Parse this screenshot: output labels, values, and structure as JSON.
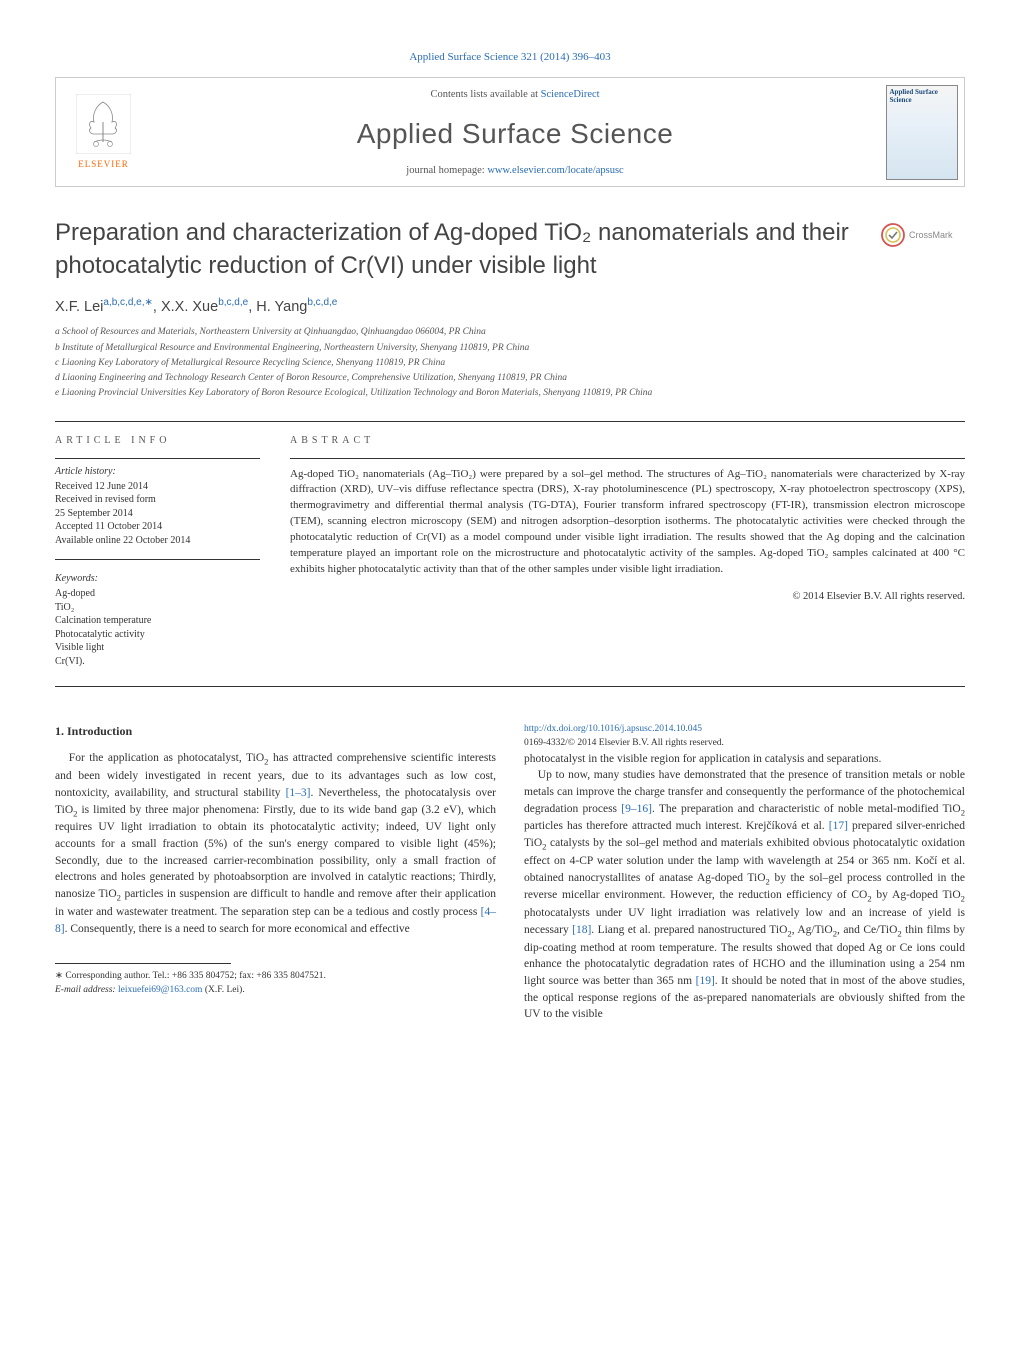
{
  "citation": "Applied Surface Science 321 (2014) 396–403",
  "header": {
    "contents_prefix": "Contents lists available at ",
    "contents_link": "ScienceDirect",
    "journal_name": "Applied Surface Science",
    "homepage_prefix": "journal homepage: ",
    "homepage_url": "www.elsevier.com/locate/apsusc",
    "publisher": "ELSEVIER",
    "cover_title": "Applied Surface Science"
  },
  "crossmark": "CrossMark",
  "title": "Preparation and characterization of Ag-doped TiO₂ nanomaterials and their photocatalytic reduction of Cr(VI) under visible light",
  "authors_html": "X.F. Lei<sup>a,b,c,d,e,∗</sup>, X.X. Xue<sup>b,c,d,e</sup>, H. Yang<sup>b,c,d,e</sup>",
  "affiliations": [
    "a School of Resources and Materials, Northeastern University at Qinhuangdao, Qinhuangdao 066004, PR China",
    "b Institute of Metallurgical Resource and Environmental Engineering, Northeastern University, Shenyang 110819, PR China",
    "c Liaoning Key Laboratory of Metallurgical Resource Recycling Science, Shenyang 110819, PR China",
    "d Liaoning Engineering and Technology Research Center of Boron Resource, Comprehensive Utilization, Shenyang 110819, PR China",
    "e Liaoning Provincial Universities Key Laboratory of Boron Resource Ecological, Utilization Technology and Boron Materials, Shenyang 110819, PR China"
  ],
  "info": {
    "article_info_label": "article info",
    "abstract_label": "abstract",
    "history_label": "Article history:",
    "history": [
      "Received 12 June 2014",
      "Received in revised form",
      "25 September 2014",
      "Accepted 11 October 2014",
      "Available online 22 October 2014"
    ],
    "keywords_label": "Keywords:",
    "keywords": [
      "Ag-doped",
      "TiO₂",
      "Calcination temperature",
      "Photocatalytic activity",
      "Visible light",
      "Cr(VI)."
    ]
  },
  "abstract": "Ag-doped TiO₂ nanomaterials (Ag–TiO₂) were prepared by a sol–gel method. The structures of Ag–TiO₂ nanomaterials were characterized by X-ray diffraction (XRD), UV–vis diffuse reflectance spectra (DRS), X-ray photoluminescence (PL) spectroscopy, X-ray photoelectron spectroscopy (XPS), thermogravimetry and differential thermal analysis (TG-DTA), Fourier transform infrared spectroscopy (FT-IR), transmission electron microscope (TEM), scanning electron microscopy (SEM) and nitrogen adsorption–desorption isotherms. The photocatalytic activities were checked through the photocatalytic reduction of Cr(VI) as a model compound under visible light irradiation. The results showed that the Ag doping and the calcination temperature played an important role on the microstructure and photocatalytic activity of the samples. Ag-doped TiO₂ samples calcinated at 400 °C exhibits higher photocatalytic activity than that of the other samples under visible light irradiation.",
  "copyright": "© 2014 Elsevier B.V. All rights reserved.",
  "intro_heading": "1.  Introduction",
  "intro_p1_html": "For the application as photocatalyst, TiO<sub>2</sub> has attracted comprehensive scientific interests and been widely investigated in recent years, due to its advantages such as low cost, nontoxicity, availability, and structural stability <a href=\"#\">[1–3]</a>. Nevertheless, the photocatalysis over TiO<sub>2</sub> is limited by three major phenomena: Firstly, due to its wide band gap (3.2 eV), which requires UV light irradiation to obtain its photocatalytic activity; indeed, UV light only accounts for a small fraction (5%) of the sun's energy compared to visible light (45%); Secondly, due to the increased carrier-recombination possibility, only a small fraction of electrons and holes generated by photoabsorption are involved in catalytic reactions; Thirdly, nanosize TiO<sub>2</sub> particles in suspension are difficult to handle and remove after their application in water and wastewater treatment. The separation step can be a tedious and costly process <a href=\"#\">[4–8]</a>. Consequently, there is a need to search for more economical and effective",
  "intro_p2_html": "photocatalyst in the visible region for application in catalysis and separations.",
  "intro_p3_html": "Up to now, many studies have demonstrated that the presence of transition metals or noble metals can improve the charge transfer and consequently the performance of the photochemical degradation process <a href=\"#\">[9–16]</a>. The preparation and characteristic of noble metal-modified TiO<sub>2</sub> particles has therefore attracted much interest. Krejčíková et al. <a href=\"#\">[17]</a> prepared silver-enriched TiO<sub>2</sub> catalysts by the sol–gel method and materials exhibited obvious photocatalytic oxidation effect on 4-CP water solution under the lamp with wavelength at 254 or 365 nm. Kočí et al. obtained nanocrystallites of anatase Ag-doped TiO<sub>2</sub> by the sol–gel process controlled in the reverse micellar environment. However, the reduction efficiency of CO<sub>2</sub> by Ag-doped TiO<sub>2</sub> photocatalysts under UV light irradiation was relatively low and an increase of yield is necessary <a href=\"#\">[18]</a>. Liang et al. prepared nanostructured TiO<sub>2</sub>, Ag/TiO<sub>2</sub>, and Ce/TiO<sub>2</sub> thin films by dip-coating method at room temperature. The results showed that doped Ag or Ce ions could enhance the photocatalytic degradation rates of HCHO and the illumination using a 254 nm light source was better than 365 nm <a href=\"#\">[19]</a>. It should be noted that in most of the above studies, the optical response regions of the as-prepared nanomaterials are obviously shifted from the UV to the visible",
  "footnote": {
    "corresponding": "∗ Corresponding author. Tel.: +86 335 804752; fax: +86 335 8047521.",
    "email_label": "E-mail address: ",
    "email": "leixuefei69@163.com",
    "email_suffix": " (X.F. Lei)."
  },
  "doi": {
    "url": "http://dx.doi.org/10.1016/j.apsusc.2014.10.045",
    "line2": "0169-4332/© 2014 Elsevier B.V. All rights reserved."
  },
  "colors": {
    "link": "#2a6db5",
    "elsevier_orange": "#ff6600",
    "text": "#333333",
    "muted": "#555555",
    "border": "#cccccc"
  }
}
